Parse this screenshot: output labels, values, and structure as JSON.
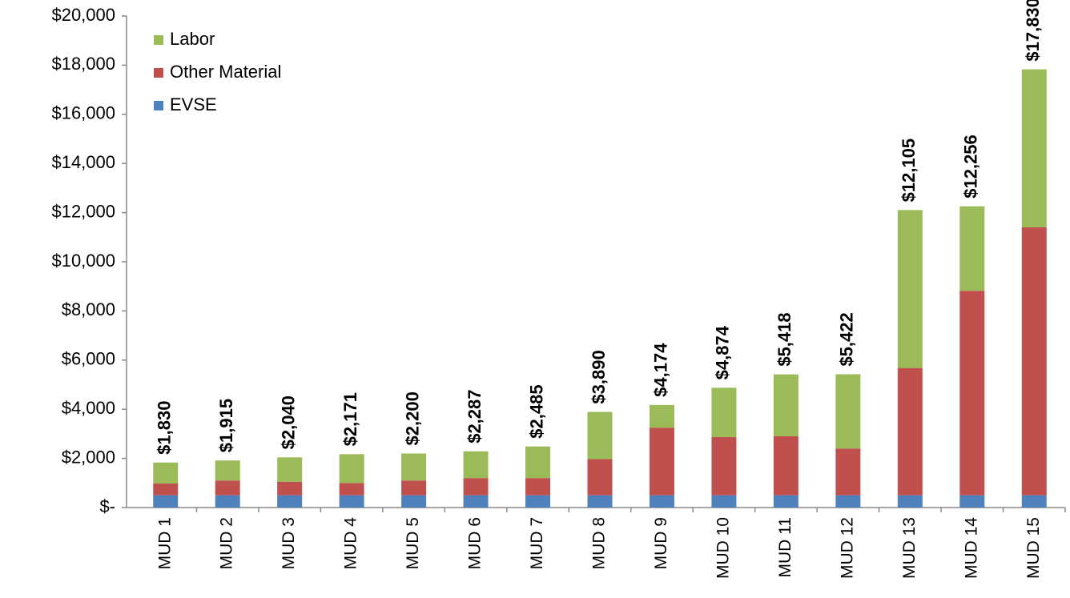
{
  "chart_data": {
    "type": "stacked_bar",
    "categories": [
      "MUD 1",
      "MUD 2",
      "MUD 3",
      "MUD 4",
      "MUD 5",
      "MUD 6",
      "MUD 7",
      "MUD 8",
      "MUD 9",
      "MUD 10",
      "MUD 11",
      "MUD 12",
      "MUD 13",
      "MUD 14",
      "MUD 15"
    ],
    "series": [
      {
        "name": "EVSE",
        "color": "#4f81bd",
        "values": [
          500,
          500,
          500,
          500,
          500,
          500,
          500,
          500,
          500,
          500,
          500,
          500,
          500,
          500,
          500
        ]
      },
      {
        "name": "Other Material",
        "color": "#c0504d",
        "values": [
          480,
          600,
          550,
          500,
          600,
          700,
          700,
          1470,
          2750,
          2370,
          2400,
          1900,
          5180,
          8320,
          10900
        ]
      },
      {
        "name": "Labor",
        "color": "#9bbb59",
        "values": [
          850,
          815,
          990,
          1171,
          1100,
          1087,
          1285,
          1920,
          924,
          2004,
          2518,
          3022,
          6425,
          3436,
          6430
        ]
      }
    ],
    "totals": [
      1830,
      1915,
      2040,
      2171,
      2200,
      2287,
      2485,
      3890,
      4174,
      4874,
      5418,
      5422,
      12105,
      12256,
      17830
    ],
    "total_labels": [
      "$1,830",
      "$1,915",
      "$2,040",
      "$2,171",
      "$2,200",
      "$2,287",
      "$2,485",
      "$3,890",
      "$4,174",
      "$4,874",
      "$5,418",
      "$5,422",
      "$12,105",
      "$12,256",
      "$17,830"
    ],
    "ylim": [
      0,
      20000
    ],
    "yticks": [
      {
        "value": 0,
        "label": "$-"
      },
      {
        "value": 2000,
        "label": "$2,000"
      },
      {
        "value": 4000,
        "label": "$4,000"
      },
      {
        "value": 6000,
        "label": "$6,000"
      },
      {
        "value": 8000,
        "label": "$8,000"
      },
      {
        "value": 10000,
        "label": "$10,000"
      },
      {
        "value": 12000,
        "label": "$12,000"
      },
      {
        "value": 14000,
        "label": "$14,000"
      },
      {
        "value": 16000,
        "label": "$16,000"
      },
      {
        "value": 18000,
        "label": "$18,000"
      },
      {
        "value": 20000,
        "label": "$20,000"
      }
    ],
    "legend": "upper left"
  }
}
